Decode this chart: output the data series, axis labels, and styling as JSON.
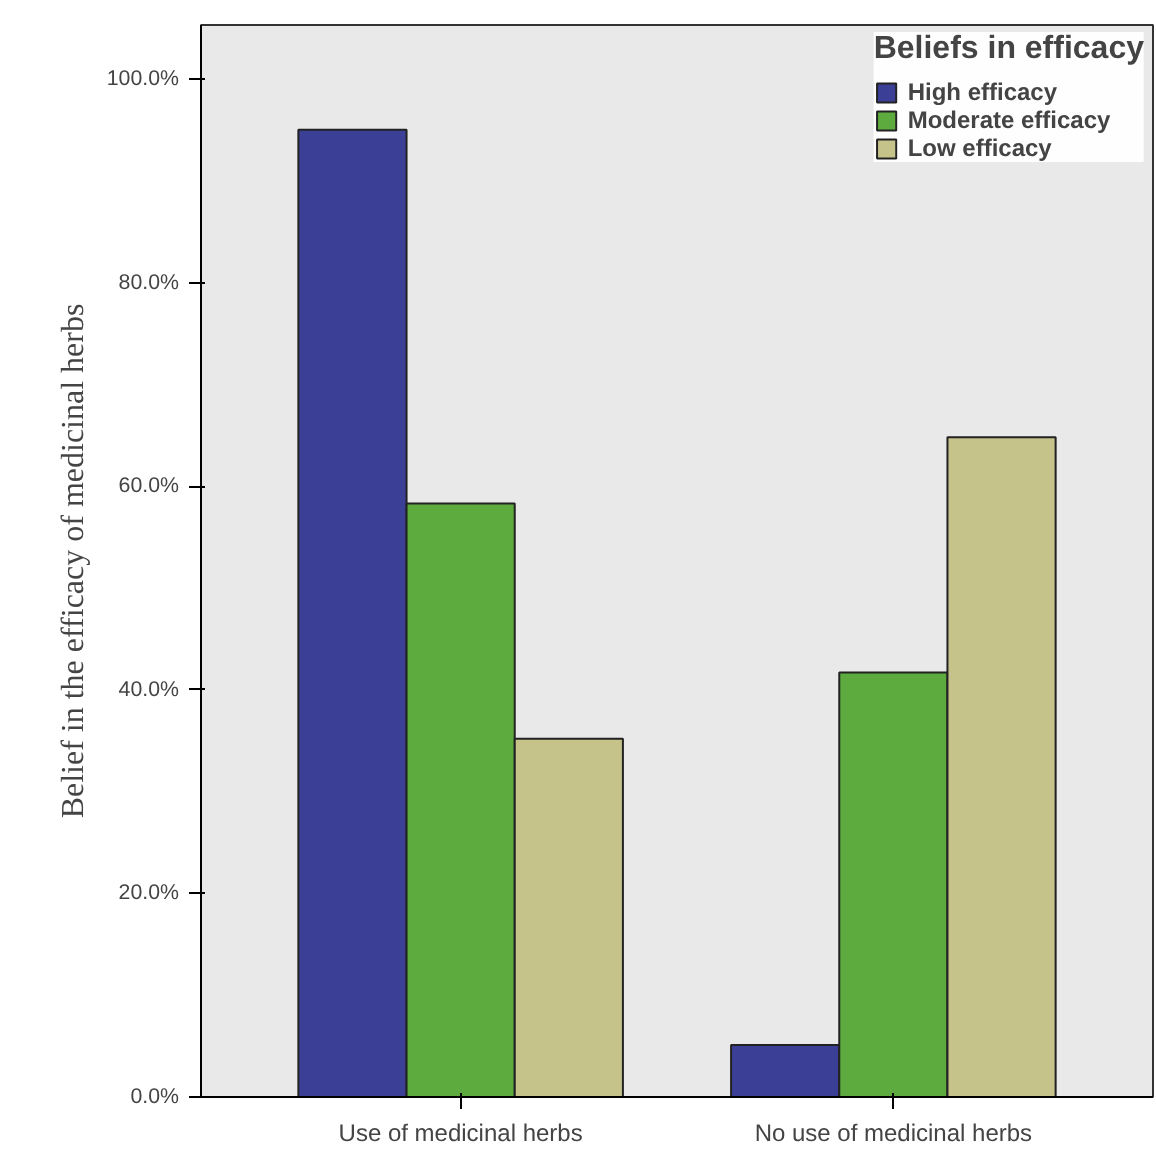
{
  "chart_data": {
    "type": "bar",
    "ylabel": "Belief in the efficacy of medicinal herbs",
    "legend_title": "Beliefs in efficacy",
    "categories": [
      "Use of medicinal herbs",
      "No use of medicinal herbs"
    ],
    "series": [
      {
        "name": "High efficacy",
        "color": "#3c3f96",
        "values": [
          95.0,
          5.1
        ]
      },
      {
        "name": "Moderate efficacy",
        "color": "#5dab3e",
        "values": [
          58.3,
          41.7
        ]
      },
      {
        "name": "Low efficacy",
        "color": "#c5c38a",
        "values": [
          35.2,
          64.8
        ]
      }
    ],
    "ylim": [
      0,
      105.3
    ],
    "yticks": [
      {
        "value": 0,
        "label": "0.0%"
      },
      {
        "value": 20,
        "label": "20.0%"
      },
      {
        "value": 40,
        "label": "40.0%"
      },
      {
        "value": 60,
        "label": "60.0%"
      },
      {
        "value": 80,
        "label": "80.0%"
      },
      {
        "value": 100,
        "label": "100.0%"
      }
    ],
    "grid": false,
    "legend": "top right"
  }
}
